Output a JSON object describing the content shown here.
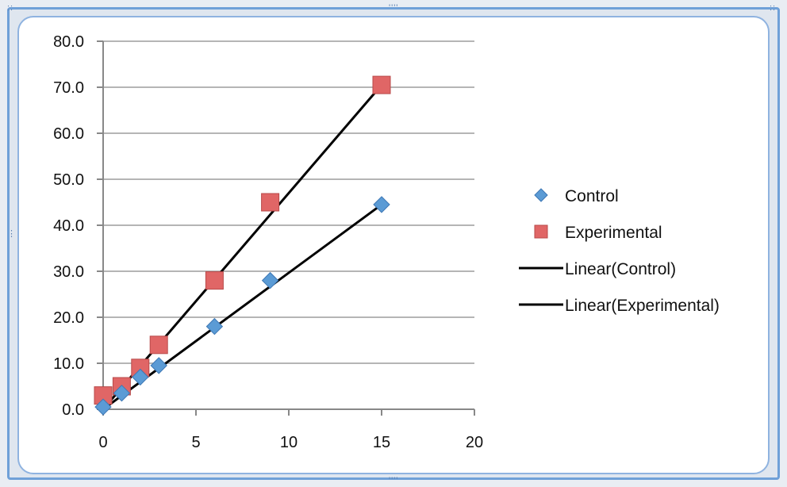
{
  "chart_data": {
    "type": "scatter",
    "title": "",
    "xlabel": "",
    "ylabel": "",
    "xlim": [
      0,
      20
    ],
    "ylim": [
      0,
      80
    ],
    "x_ticks": [
      0,
      5,
      10,
      15,
      20
    ],
    "y_ticks": [
      "0.0",
      "10.0",
      "20.0",
      "30.0",
      "40.0",
      "50.0",
      "60.0",
      "70.0",
      "80.0"
    ],
    "grid": "horizontal",
    "legend_position": "right",
    "series": [
      {
        "name": "Control",
        "marker": "diamond",
        "color": "#5b9bd5",
        "points": [
          [
            0,
            0.5
          ],
          [
            1,
            3.5
          ],
          [
            2,
            7.0
          ],
          [
            3,
            9.5
          ],
          [
            6,
            18.0
          ],
          [
            9,
            28.0
          ],
          [
            15,
            44.5
          ]
        ]
      },
      {
        "name": "Experimental",
        "marker": "square",
        "color": "#e06666",
        "points": [
          [
            0,
            3.0
          ],
          [
            1,
            5.0
          ],
          [
            2,
            9.0
          ],
          [
            3,
            14.0
          ],
          [
            6,
            28.0
          ],
          [
            9,
            45.0
          ],
          [
            15,
            70.5
          ]
        ]
      }
    ],
    "trendlines": [
      {
        "name": "Linear(Control)",
        "type": "linear",
        "color": "#000000",
        "from": [
          0,
          0
        ],
        "to": [
          15,
          44.5
        ]
      },
      {
        "name": "Linear(Experimental)",
        "type": "linear",
        "color": "#000000",
        "from": [
          0,
          0
        ],
        "to": [
          15,
          70.5
        ]
      }
    ]
  }
}
